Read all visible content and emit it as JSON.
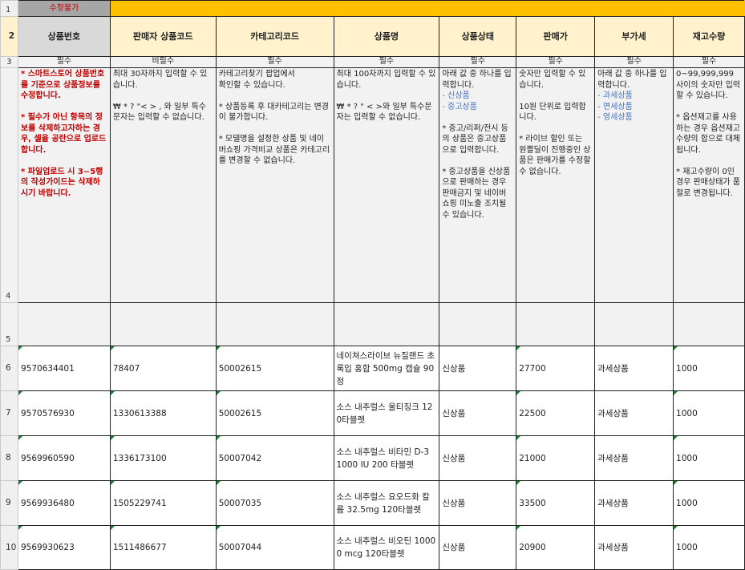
{
  "row_numbers": [
    "1",
    "2",
    "3",
    "4",
    "5",
    "6",
    "7",
    "8",
    "9",
    "10"
  ],
  "banner": {
    "locked_label": "수정불가",
    "colors": {
      "locked_bg": "#a6a6a6",
      "locked_text": "#c00000",
      "banner_bg": "#ffc000",
      "header_bg": "#fff2cc"
    }
  },
  "headers": [
    "상품번호",
    "판매자 상품코드",
    "카테고리코드",
    "상품명",
    "상품상태",
    "판매가",
    "부가세",
    "재고수량"
  ],
  "required": [
    "필수",
    "비필수",
    "필수",
    "필수",
    "필수",
    "필수",
    "필수",
    "필수"
  ],
  "guides": {
    "product_no": "* 스마트스토어 상품번호를 기준으로 상품정보를 수정합니다.\n\n* 필수가 아닌 항목의 정보를 삭제하고자하는 경우, 셀을 공란으로 업로드합니다.\n\n* 파일업로드 시 3~5행의 작성가이드는 삭제하시기 바랍니다.",
    "seller_code": "최대 30자까지 입력할 수 있습니다.\n\n₩ * ? \"< > , 와 일부 특수문자는 입력할 수 없습니다.",
    "category": "카테고리찾기 팝업에서\n확인할 수 있습니다.\n\n* 상품등록 후 대카테고리는 변경이 불가합니다.\n\n* 모델명을 설정한 상품 및 네이버쇼핑 가격비교 상품은 카테고리를 변경할 수 없습니다.",
    "name": "최대 100자까지 입력할 수 있습니다.\n\n₩ * ? \" < >와 일부 특수문자는 입력할 수 없습니다.",
    "status_intro": "아래 값 중 하나를 입력합니다.",
    "status_options": [
      "- 신상품",
      "- 중고상품"
    ],
    "status_notes": "\n* 중고/리퍼/전시 등의 상품은 중고상품으로 입력합니다.\n\n* 중고상품을 신상품으로 판매하는 경우 판매금지 및 네이버쇼핑 미노출 조치될 수 있습니다.",
    "price": "숫자만 입력할 수 있습니다.\n\n10원 단위로 입력합니다.\n\n* 라이브 할인 또는 원쁠딜이 진행중인 상품은 판매가를 수정할 수 없습니다.",
    "vat_intro": "아래 값 중 하나를 입력합니다.",
    "vat_options": [
      "- 과세상품",
      "- 면세상품",
      "- 영세상품"
    ],
    "stock": "0~99,999,999\n사이의 숫자만 입력할 수 있습니다.\n\n* 옵션재고를 사용하는 경우 옵션재고수량의 합으로 대체됩니다.\n\n* 재고수량이 0인 경우 판매상태가 품절로 변경됩니다."
  },
  "rows": [
    [
      "9570634401",
      "78407",
      "50002615",
      "네이쳐스라이브 뉴질랜드 초록입 홍합 500mg 캡슐 90정",
      "신상품",
      "27700",
      "과세상품",
      "1000"
    ],
    [
      "9570576930",
      "1330613388",
      "50002615",
      "소스 내추럴스 울티징크 120타블렛",
      "신상품",
      "22500",
      "과세상품",
      "1000"
    ],
    [
      "9569960590",
      "1336173100",
      "50007042",
      "소스 내추럴스 비타민 D-3 1000 IU 200 타블렛",
      "신상품",
      "21000",
      "과세상품",
      "1000"
    ],
    [
      "9569936480",
      "1505229741",
      "50007035",
      "소스 내추럴스 요오드화 칼륨 32.5mg 120타블렛",
      "신상품",
      "33500",
      "과세상품",
      "1000"
    ],
    [
      "9569930623",
      "1511486677",
      "50007044",
      "소스 내추럴스 비오틴 10000 mcg 120타블렛",
      "신상품",
      "20900",
      "과세상품",
      "1000"
    ]
  ]
}
